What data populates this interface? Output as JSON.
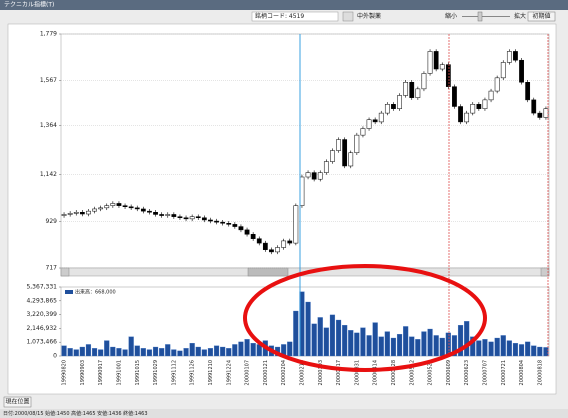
{
  "window_title": "テクニカル指標(T)",
  "toolbar": {
    "code_label": "銘柄コード: 4519",
    "company": "中外製薬",
    "zoom_out": "縮小",
    "zoom_in": "拡大",
    "reset_button": "初期値"
  },
  "position_button": "現在位置",
  "status_bar": "日付:2000/08/15 始値:1450 高値:1465 安値:1436 終値:1463",
  "chart_data": [
    {
      "type": "candlestick",
      "ylim": [
        717,
        1779
      ],
      "yticks": [
        717,
        929,
        {
          "value": 1142,
          "label": "1,142"
        },
        {
          "value": 1364,
          "label": "1,364"
        },
        {
          "value": 1567,
          "label": "1,567"
        },
        {
          "value": 1779,
          "label": "1,779"
        }
      ],
      "grid": true,
      "up_color": "#ffffff",
      "down_color": "#000000",
      "open": [
        955,
        960,
        965,
        970,
        962,
        975,
        985,
        990,
        1000,
        1010,
        1000,
        995,
        990,
        985,
        975,
        970,
        960,
        955,
        960,
        950,
        945,
        940,
        950,
        945,
        935,
        930,
        925,
        920,
        915,
        905,
        890,
        870,
        850,
        830,
        800,
        790,
        810,
        840,
        830,
        1000,
        1130,
        1150,
        1120,
        1150,
        1200,
        1250,
        1300,
        1180,
        1240,
        1320,
        1350,
        1390,
        1380,
        1420,
        1460,
        1440,
        1500,
        1560,
        1490,
        1530,
        1600,
        1700,
        1620,
        1640,
        1540,
        1450,
        1380,
        1420,
        1460,
        1440,
        1480,
        1520,
        1580,
        1650,
        1700,
        1660,
        1560,
        1480,
        1420,
        1400
      ],
      "high": [
        970,
        975,
        980,
        980,
        985,
        995,
        1000,
        1010,
        1020,
        1020,
        1010,
        1005,
        1000,
        995,
        985,
        980,
        970,
        970,
        970,
        960,
        955,
        960,
        960,
        955,
        945,
        940,
        935,
        930,
        925,
        915,
        900,
        880,
        860,
        840,
        810,
        820,
        850,
        850,
        1010,
        1140,
        1160,
        1160,
        1160,
        1210,
        1260,
        1310,
        1310,
        1250,
        1330,
        1360,
        1400,
        1400,
        1430,
        1470,
        1470,
        1510,
        1570,
        1570,
        1540,
        1610,
        1710,
        1710,
        1650,
        1650,
        1550,
        1460,
        1430,
        1470,
        1470,
        1490,
        1530,
        1590,
        1660,
        1710,
        1710,
        1670,
        1570,
        1490,
        1430,
        1450
      ],
      "low": [
        945,
        950,
        955,
        952,
        952,
        965,
        975,
        980,
        990,
        990,
        985,
        980,
        975,
        965,
        960,
        950,
        945,
        945,
        940,
        935,
        930,
        930,
        935,
        925,
        920,
        915,
        910,
        905,
        895,
        880,
        860,
        840,
        820,
        790,
        780,
        780,
        800,
        820,
        820,
        990,
        1120,
        1110,
        1110,
        1140,
        1190,
        1240,
        1170,
        1170,
        1230,
        1310,
        1340,
        1370,
        1370,
        1410,
        1430,
        1430,
        1490,
        1480,
        1480,
        1520,
        1590,
        1610,
        1610,
        1530,
        1440,
        1370,
        1370,
        1410,
        1430,
        1430,
        1470,
        1510,
        1570,
        1640,
        1650,
        1550,
        1470,
        1410,
        1390,
        1390
      ],
      "close": [
        960,
        965,
        970,
        962,
        975,
        985,
        990,
        1000,
        1010,
        1000,
        995,
        990,
        985,
        975,
        970,
        960,
        955,
        960,
        950,
        945,
        940,
        950,
        945,
        935,
        930,
        925,
        920,
        915,
        905,
        890,
        870,
        850,
        830,
        800,
        790,
        810,
        840,
        830,
        1000,
        1130,
        1150,
        1120,
        1150,
        1200,
        1250,
        1300,
        1180,
        1240,
        1320,
        1350,
        1390,
        1380,
        1420,
        1460,
        1440,
        1500,
        1560,
        1490,
        1530,
        1600,
        1700,
        1620,
        1640,
        1540,
        1450,
        1380,
        1420,
        1460,
        1440,
        1480,
        1520,
        1580,
        1650,
        1700,
        1660,
        1560,
        1480,
        1420,
        1400,
        1440
      ]
    },
    {
      "type": "bar",
      "ylim": [
        0,
        5367331
      ],
      "legend": "upper left",
      "yticks": [
        0,
        {
          "value": 1073466,
          "label": "1,073,466"
        },
        {
          "value": 2146932,
          "label": "2,146,932"
        },
        {
          "value": 3220399,
          "label": "3,220,399"
        },
        {
          "value": 4293865,
          "label": "4,293,865"
        },
        {
          "value": 5367331,
          "label": "5,367,331"
        }
      ],
      "categories": [
        "19990820",
        null,
        null,
        "19990903",
        null,
        null,
        "19990917",
        null,
        null,
        "19991001",
        null,
        null,
        "19991015",
        null,
        null,
        "19991029",
        null,
        null,
        "19991112",
        null,
        null,
        "19991126",
        null,
        null,
        "19991210",
        null,
        null,
        "19991224",
        null,
        null,
        "20000107",
        null,
        null,
        "20000121",
        null,
        null,
        "20000204",
        null,
        null,
        "20000218",
        null,
        null,
        "20000303",
        null,
        null,
        "20000317",
        null,
        null,
        "20000331",
        null,
        null,
        "20000414",
        null,
        null,
        "20000428",
        null,
        null,
        "20000512",
        null,
        null,
        "20000526",
        null,
        null,
        "20000609",
        null,
        null,
        "20000623",
        null,
        null,
        "20000707",
        null,
        null,
        "20000721",
        null,
        null,
        "20000804",
        null,
        null,
        "20000818",
        null
      ],
      "series": [
        {
          "name": "出来高：668,000",
          "color": "#1f4f9c",
          "values": [
            800000,
            600000,
            500000,
            700000,
            900000,
            600000,
            500000,
            1200000,
            700000,
            600000,
            500000,
            1500000,
            800000,
            600000,
            500000,
            700000,
            600000,
            900000,
            500000,
            400000,
            600000,
            1000000,
            700000,
            500000,
            600000,
            800000,
            700000,
            600000,
            900000,
            1100000,
            1300000,
            1000000,
            900000,
            1200000,
            800000,
            700000,
            900000,
            1100000,
            3500000,
            5000000,
            4200000,
            2500000,
            3000000,
            2200000,
            3200000,
            2800000,
            2400000,
            2000000,
            1800000,
            2200000,
            1600000,
            2600000,
            1500000,
            1900000,
            1400000,
            1700000,
            2300000,
            1500000,
            1300000,
            1900000,
            2100000,
            1600000,
            1400000,
            1800000,
            1600000,
            2400000,
            2700000,
            1500000,
            1200000,
            1300000,
            1100000,
            1400000,
            1600000,
            1200000,
            1000000,
            900000,
            1100000,
            800000,
            700000,
            668000
          ]
        }
      ]
    }
  ]
}
